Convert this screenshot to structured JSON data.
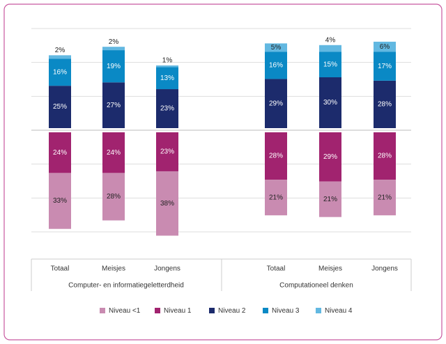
{
  "chart_data": {
    "type": "diverging-stacked-bar",
    "categories": [
      "Totaal",
      "Meisjes",
      "Jongens",
      "Totaal",
      "Meisjes",
      "Jongens"
    ],
    "groups": [
      "Computer- en informatiegeletterdheid",
      "Computationeel denken"
    ],
    "series": [
      {
        "name": "Niveau <1",
        "color": "#c98bb1",
        "side": "below",
        "values": [
          33,
          28,
          38,
          21,
          21,
          21
        ],
        "value_labels": [
          "33%",
          "28%",
          "38%",
          "21%",
          "21%",
          "21%"
        ]
      },
      {
        "name": "Niveau 1",
        "color": "#a1236f",
        "side": "below",
        "values": [
          24,
          24,
          23,
          28,
          29,
          28
        ],
        "value_labels": [
          "24%",
          "24%",
          "23%",
          "28%",
          "29%",
          "28%"
        ]
      },
      {
        "name": "Niveau 2",
        "color": "#1c2b6c",
        "side": "above",
        "values": [
          25,
          27,
          23,
          29,
          30,
          28
        ],
        "value_labels": [
          "25%",
          "27%",
          "23%",
          "29%",
          "30%",
          "28%"
        ]
      },
      {
        "name": "Niveau 3",
        "color": "#0a89c5",
        "side": "above",
        "values": [
          16,
          19,
          13,
          16,
          15,
          17
        ],
        "value_labels": [
          "16%",
          "19%",
          "13%",
          "16%",
          "15%",
          "17%"
        ]
      },
      {
        "name": "Niveau 4",
        "color": "#62b8e1",
        "side": "above",
        "values": [
          2,
          2,
          1,
          5,
          4,
          6
        ],
        "value_labels": [
          "2%",
          "2%",
          "1%",
          "5%",
          "4%",
          "6%"
        ]
      }
    ],
    "ylim": [
      -60,
      60
    ],
    "yticks": [
      -60,
      -40,
      -20,
      0,
      20,
      40,
      60
    ],
    "grid": true
  }
}
